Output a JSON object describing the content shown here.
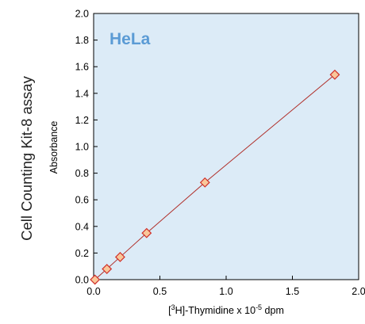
{
  "side_title": "Cell Counting Kit-8 assay",
  "chart_data": {
    "type": "line",
    "title": "HeLa",
    "ylabel": "Absorbance",
    "xlabel_parts": {
      "open_bracket": "[",
      "superscript": "3",
      "element": "H]-Thymidine x 10",
      "exponent": "-5",
      "unit": " dpm"
    },
    "xlim": [
      0,
      2.0
    ],
    "ylim": [
      0,
      2.0
    ],
    "x_ticks": [
      "0.0",
      "0.5",
      "1.0",
      "1.5",
      "2.0"
    ],
    "y_ticks": [
      "0.0",
      "0.2",
      "0.4",
      "0.6",
      "0.8",
      "1.0",
      "1.2",
      "1.4",
      "1.6",
      "1.8",
      "2.0"
    ],
    "grid": false,
    "series": [
      {
        "marker": "diamond",
        "x": [
          0.01,
          0.1,
          0.2,
          0.4,
          0.84,
          1.82
        ],
        "y": [
          0.0,
          0.08,
          0.17,
          0.35,
          0.73,
          1.54
        ]
      }
    ],
    "colors": {
      "plot_background": "#dcebf7",
      "line": "#b0302b",
      "marker_fill": "#f9c79a",
      "marker_stroke": "#d0302a",
      "title": "#5b9bd5"
    }
  }
}
